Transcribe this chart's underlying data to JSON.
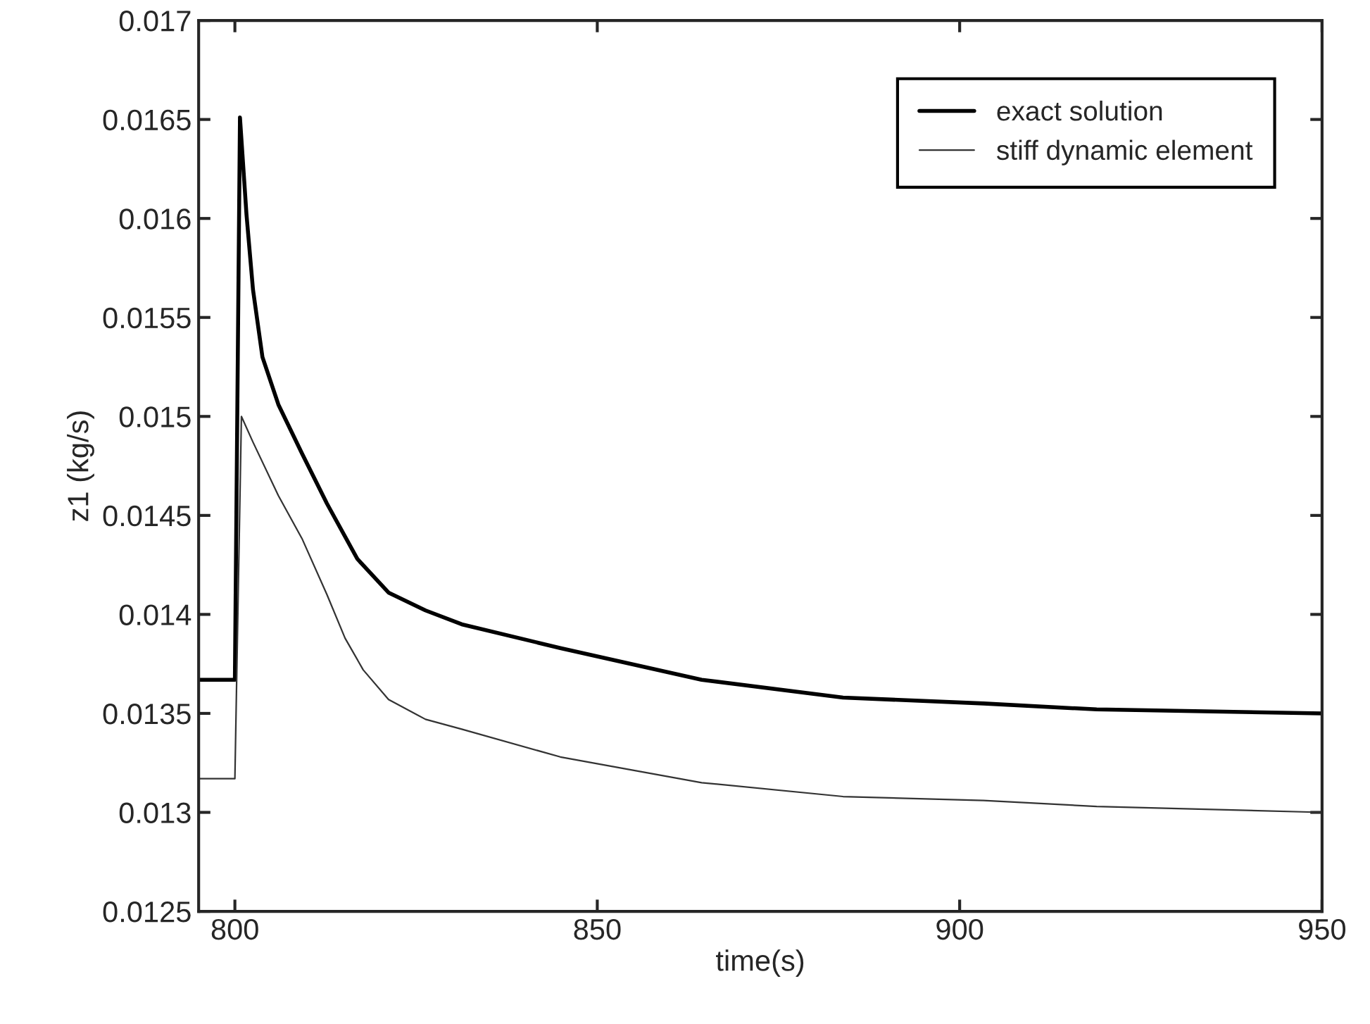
{
  "chart_data": {
    "type": "line",
    "xlabel": "time(s)",
    "ylabel": "z1 (kg/s)",
    "xlim": [
      795,
      950
    ],
    "xticks": [
      800,
      850,
      900,
      950
    ],
    "ylim": [
      0.0125,
      0.017
    ],
    "yticks": [
      0.0125,
      0.013,
      0.0135,
      0.014,
      0.0145,
      0.015,
      0.0155,
      0.016,
      0.0165,
      0.017
    ],
    "grid": false,
    "legend": "top right",
    "series": [
      {
        "name": "exact solution",
        "color": "#000000",
        "x": [
          795,
          800,
          800.7,
          801.6,
          802.5,
          803.8,
          806,
          809.3,
          812.7,
          816.9,
          821.2,
          826.3,
          831.3,
          844.9,
          864.4,
          883.9,
          903.3,
          918.9,
          950
        ],
        "values": [
          0.01367,
          0.01367,
          0.01651,
          0.01602,
          0.01564,
          0.0153,
          0.01506,
          0.01481,
          0.01456,
          0.01428,
          0.01411,
          0.01402,
          0.01395,
          0.01383,
          0.01367,
          0.01358,
          0.01355,
          0.01352,
          0.0135
        ]
      },
      {
        "name": "stiff dynamic element",
        "color": "#333333",
        "x": [
          795,
          800,
          800.9,
          802.5,
          806,
          809.3,
          812.7,
          815.2,
          817.7,
          821.2,
          826.3,
          831.3,
          844.9,
          864.4,
          883.9,
          903.3,
          918.9,
          950
        ],
        "values": [
          0.01317,
          0.01317,
          0.015,
          0.01487,
          0.0146,
          0.01438,
          0.0141,
          0.01388,
          0.01372,
          0.01357,
          0.01347,
          0.01342,
          0.01328,
          0.01315,
          0.01308,
          0.01306,
          0.01303,
          0.013
        ]
      }
    ]
  }
}
